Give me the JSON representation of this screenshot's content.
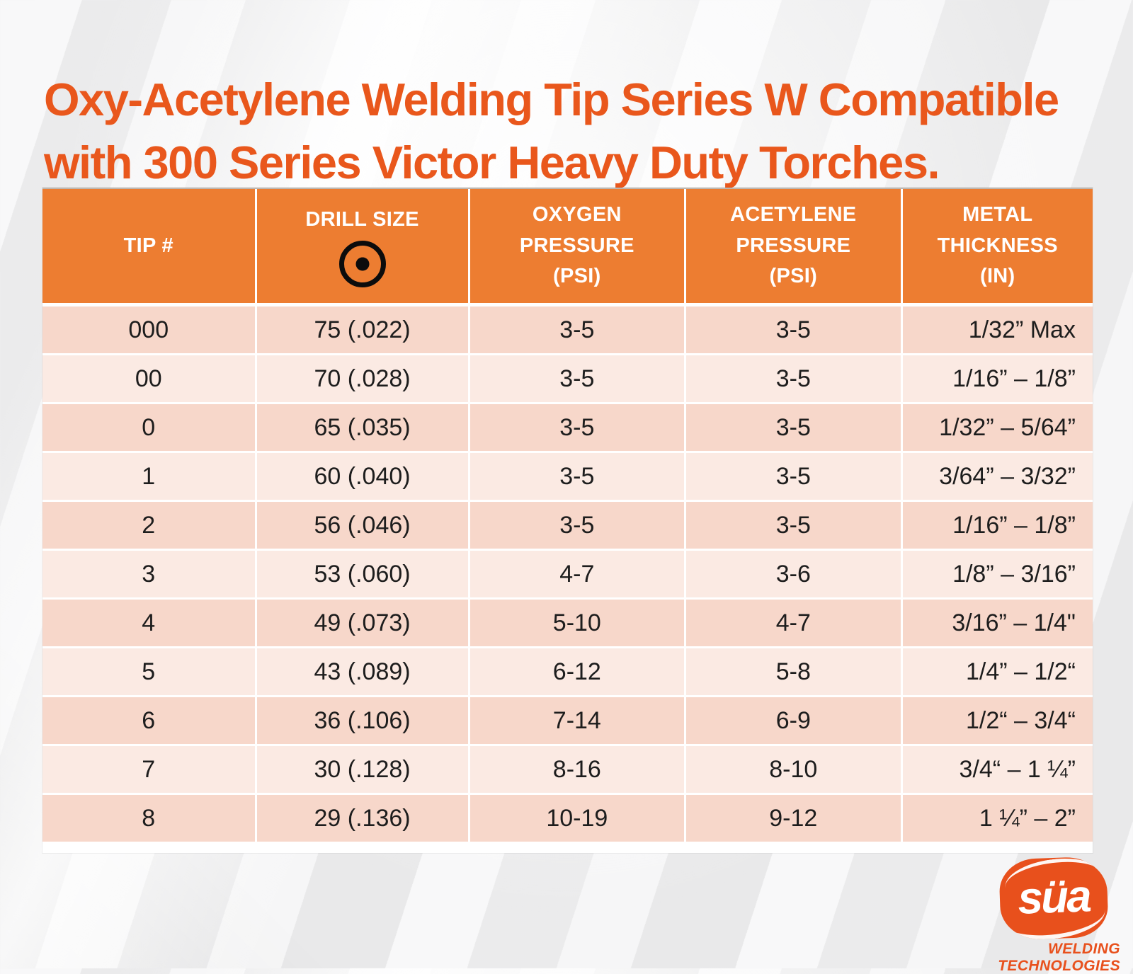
{
  "title": {
    "text": "Oxy-Acetylene Welding Tip Series W Compatible\nwith 300 Series Victor Heavy Duty Torches."
  },
  "table": {
    "header": {
      "tip": "TIP #",
      "drill": "DRILL SIZE",
      "drill_icon": "drill-orifice-icon",
      "oxygen": "OXYGEN\nPRESSURE\n(PSI)",
      "acetylene": "ACETYLENE\nPRESSURE\n(PSI)",
      "metal": "METAL\nTHICKNESS\n(IN)"
    },
    "rows": [
      [
        "000",
        "75 (.022)",
        "3-5",
        "3-5",
        "1/32” Max"
      ],
      [
        "00",
        "70 (.028)",
        "3-5",
        "3-5",
        "1/16” – 1/8”"
      ],
      [
        "0",
        "65 (.035)",
        "3-5",
        "3-5",
        "1/32” – 5/64”"
      ],
      [
        "1",
        "60 (.040)",
        "3-5",
        "3-5",
        "3/64” – 3/32”"
      ],
      [
        "2",
        "56 (.046)",
        "3-5",
        "3-5",
        "1/16” – 1/8”"
      ],
      [
        "3",
        "53 (.060)",
        "4-7",
        "3-6",
        "1/8” – 3/16”"
      ],
      [
        "4",
        "49 (.073)",
        "5-10",
        "4-7",
        "3/16” – 1/4\""
      ],
      [
        "5",
        "43 (.089)",
        "6-12",
        "5-8",
        "1/4” – 1/2“"
      ],
      [
        "6",
        "36 (.106)",
        "7-14",
        "6-9",
        "1/2“ – 3/4“"
      ],
      [
        "7",
        "30 (.128)",
        "8-16",
        "8-10",
        "3/4“ – 1 ¼”"
      ],
      [
        "8",
        "29 (.136)",
        "10-19",
        "9-12",
        "1 ¼” – 2”"
      ]
    ]
  },
  "logo": {
    "brand": "süa",
    "tagline": "WELDING\nTECHNOLOGIES"
  },
  "colors": {
    "title_text": "#E9571C",
    "header_bg": "#ED7D31",
    "row_dark": "#F7D7CA",
    "row_light": "#FBEAE3",
    "logo_orange": "#E8501C",
    "cell_text": "#1d1d1d"
  }
}
